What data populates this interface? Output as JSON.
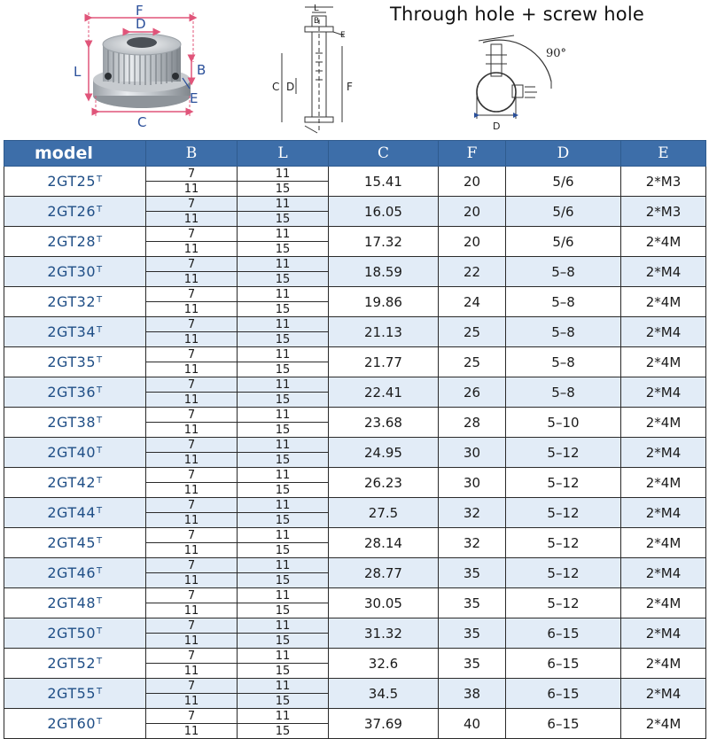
{
  "headline": "Through hole + screw hole",
  "diagram_labels": {
    "photo": {
      "F": "F",
      "D": "D",
      "L": "L",
      "B": "B",
      "E": "E",
      "C": "C"
    },
    "side": {
      "L": "L",
      "B": "B",
      "E": "E",
      "C": "C",
      "D": "D",
      "F": "F"
    },
    "end": {
      "angle": "90°",
      "D": "D"
    }
  },
  "table": {
    "headers": [
      "model",
      "B",
      "L",
      "C",
      "F",
      "D",
      "E"
    ],
    "suffix": "T",
    "rows": [
      {
        "model": "2GT25",
        "B": [
          "7",
          "11"
        ],
        "L": [
          "11",
          "15"
        ],
        "C": "15.41",
        "F": "20",
        "D": "5/6",
        "E": "2*M3"
      },
      {
        "model": "2GT26",
        "B": [
          "7",
          "11"
        ],
        "L": [
          "11",
          "15"
        ],
        "C": "16.05",
        "F": "20",
        "D": "5/6",
        "E": "2*M3"
      },
      {
        "model": "2GT28",
        "B": [
          "7",
          "11"
        ],
        "L": [
          "11",
          "15"
        ],
        "C": "17.32",
        "F": "20",
        "D": "5/6",
        "E": "2*4M"
      },
      {
        "model": "2GT30",
        "B": [
          "7",
          "11"
        ],
        "L": [
          "11",
          "15"
        ],
        "C": "18.59",
        "F": "22",
        "D": "5–8",
        "E": "2*M4"
      },
      {
        "model": "2GT32",
        "B": [
          "7",
          "11"
        ],
        "L": [
          "11",
          "15"
        ],
        "C": "19.86",
        "F": "24",
        "D": "5–8",
        "E": "2*4M"
      },
      {
        "model": "2GT34",
        "B": [
          "7",
          "11"
        ],
        "L": [
          "11",
          "15"
        ],
        "C": "21.13",
        "F": "25",
        "D": "5–8",
        "E": "2*M4"
      },
      {
        "model": "2GT35",
        "B": [
          "7",
          "11"
        ],
        "L": [
          "11",
          "15"
        ],
        "C": "21.77",
        "F": "25",
        "D": "5–8",
        "E": "2*4M"
      },
      {
        "model": "2GT36",
        "B": [
          "7",
          "11"
        ],
        "L": [
          "11",
          "15"
        ],
        "C": "22.41",
        "F": "26",
        "D": "5–8",
        "E": "2*M4"
      },
      {
        "model": "2GT38",
        "B": [
          "7",
          "11"
        ],
        "L": [
          "11",
          "15"
        ],
        "C": "23.68",
        "F": "28",
        "D": "5–10",
        "E": "2*4M"
      },
      {
        "model": "2GT40",
        "B": [
          "7",
          "11"
        ],
        "L": [
          "11",
          "15"
        ],
        "C": "24.95",
        "F": "30",
        "D": "5–12",
        "E": "2*M4"
      },
      {
        "model": "2GT42",
        "B": [
          "7",
          "11"
        ],
        "L": [
          "11",
          "15"
        ],
        "C": "26.23",
        "F": "30",
        "D": "5–12",
        "E": "2*4M"
      },
      {
        "model": "2GT44",
        "B": [
          "7",
          "11"
        ],
        "L": [
          "11",
          "15"
        ],
        "C": "27.5",
        "F": "32",
        "D": "5–12",
        "E": "2*M4"
      },
      {
        "model": "2GT45",
        "B": [
          "7",
          "11"
        ],
        "L": [
          "11",
          "15"
        ],
        "C": "28.14",
        "F": "32",
        "D": "5–12",
        "E": "2*4M"
      },
      {
        "model": "2GT46",
        "B": [
          "7",
          "11"
        ],
        "L": [
          "11",
          "15"
        ],
        "C": "28.77",
        "F": "35",
        "D": "5–12",
        "E": "2*M4"
      },
      {
        "model": "2GT48",
        "B": [
          "7",
          "11"
        ],
        "L": [
          "11",
          "15"
        ],
        "C": "30.05",
        "F": "35",
        "D": "5–12",
        "E": "2*4M"
      },
      {
        "model": "2GT50",
        "B": [
          "7",
          "11"
        ],
        "L": [
          "11",
          "15"
        ],
        "C": "31.32",
        "F": "35",
        "D": "6–15",
        "E": "2*M4"
      },
      {
        "model": "2GT52",
        "B": [
          "7",
          "11"
        ],
        "L": [
          "11",
          "15"
        ],
        "C": "32.6",
        "F": "35",
        "D": "6–15",
        "E": "2*4M"
      },
      {
        "model": "2GT55",
        "B": [
          "7",
          "11"
        ],
        "L": [
          "11",
          "15"
        ],
        "C": "34.5",
        "F": "38",
        "D": "6–15",
        "E": "2*M4"
      },
      {
        "model": "2GT60",
        "B": [
          "7",
          "11"
        ],
        "L": [
          "11",
          "15"
        ],
        "C": "37.69",
        "F": "40",
        "D": "6–15",
        "E": "2*4M"
      }
    ]
  },
  "colors": {
    "header_bg": "#3d6ea9",
    "alt_row": "#e2ecf7",
    "model_text": "#1f4e86",
    "dimension_pink": "#e0557a"
  }
}
